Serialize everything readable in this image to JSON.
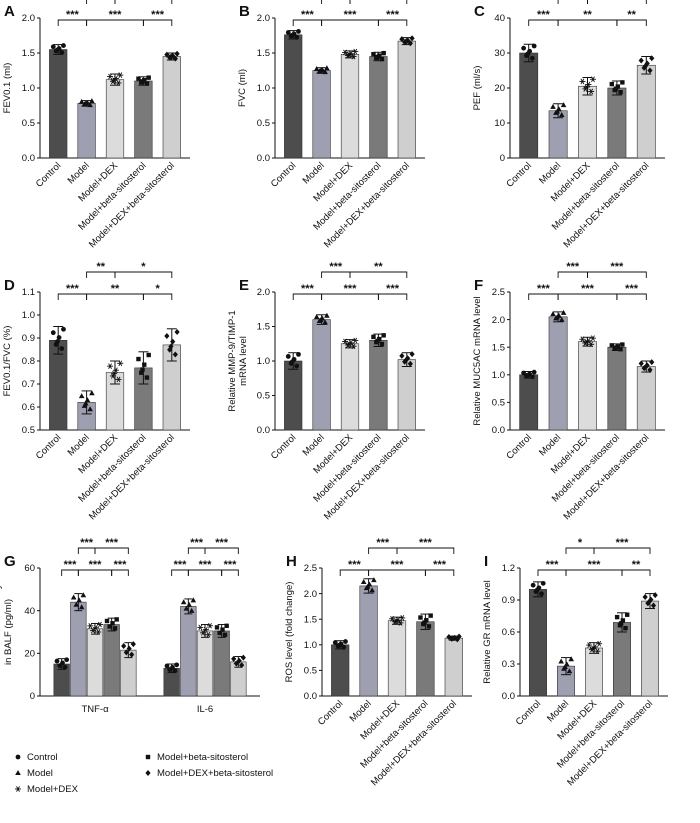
{
  "colors": {
    "Control": "#4d4d4d",
    "Model": "#9e9fb0",
    "Model+DEX": "#dcdcdc",
    "Model+beta-sitosterol": "#7a7a7a",
    "Model+DEX+beta-sitosterol": "#cfcfcf",
    "axis": "#111111"
  },
  "groups": [
    "Control",
    "Model",
    "Model+DEX",
    "Model+beta-sitosterol",
    "Model+DEX+beta-sitosterol"
  ],
  "legend": {
    "items": [
      {
        "label": "Control",
        "marker": "circle"
      },
      {
        "label": "Model+beta-sitosterol",
        "marker": "square"
      },
      {
        "label": "Model",
        "marker": "triangle"
      },
      {
        "label": "Model+DEX+beta-sitosterol",
        "marker": "diamond"
      },
      {
        "label": "Model+DEX",
        "marker": "asterisk"
      }
    ]
  },
  "chart_data": [
    {
      "panel": "A",
      "type": "bar",
      "ylabel": "FEV0.1 (ml)",
      "ylim": [
        0,
        2.0
      ],
      "yticks": [
        "0.0",
        "0.5",
        "1.0",
        "1.5",
        "2.0"
      ],
      "categories": [
        "Control",
        "Model",
        "Model+DEX",
        "Model+beta-sitosterol",
        "Model+DEX+beta-sitosterol"
      ],
      "values": [
        1.55,
        0.78,
        1.12,
        1.1,
        1.45
      ],
      "errors": [
        0.07,
        0.04,
        0.08,
        0.06,
        0.05
      ],
      "significance": [
        {
          "from": 0,
          "to": 1,
          "label": "***",
          "level": 0
        },
        {
          "from": 1,
          "to": 3,
          "label": "***",
          "level": 0
        },
        {
          "from": 3,
          "to": 4,
          "label": "***",
          "level": 0
        },
        {
          "from": 1,
          "to": 2,
          "label": "***",
          "level": 1
        },
        {
          "from": 2,
          "to": 4,
          "label": "***",
          "level": 1
        }
      ]
    },
    {
      "panel": "B",
      "type": "bar",
      "ylabel": "FVC (ml)",
      "ylim": [
        0,
        2.0
      ],
      "yticks": [
        "0.0",
        "0.5",
        "1.0",
        "1.5",
        "2.0"
      ],
      "categories": [
        "Control",
        "Model",
        "Model+DEX",
        "Model+beta-sitosterol",
        "Model+DEX+beta-sitosterol"
      ],
      "values": [
        1.76,
        1.25,
        1.48,
        1.45,
        1.67
      ],
      "errors": [
        0.06,
        0.04,
        0.05,
        0.06,
        0.05
      ],
      "significance": [
        {
          "from": 0,
          "to": 1,
          "label": "***",
          "level": 0
        },
        {
          "from": 1,
          "to": 3,
          "label": "***",
          "level": 0
        },
        {
          "from": 3,
          "to": 4,
          "label": "***",
          "level": 0
        },
        {
          "from": 1,
          "to": 2,
          "label": "***",
          "level": 1
        },
        {
          "from": 2,
          "to": 4,
          "label": "***",
          "level": 1
        }
      ]
    },
    {
      "panel": "C",
      "type": "bar",
      "ylabel": "PEF (ml/s)",
      "ylim": [
        0,
        40
      ],
      "yticks": [
        "0",
        "10",
        "20",
        "30",
        "40"
      ],
      "categories": [
        "Control",
        "Model",
        "Model+DEX",
        "Model+beta-sitosterol",
        "Model+DEX+beta-sitosterol"
      ],
      "values": [
        30,
        13.5,
        20.5,
        20,
        26.5
      ],
      "errors": [
        2.5,
        2.0,
        2.5,
        2.0,
        2.5
      ],
      "significance": [
        {
          "from": 0,
          "to": 1,
          "label": "***",
          "level": 0
        },
        {
          "from": 1,
          "to": 3,
          "label": "**",
          "level": 0
        },
        {
          "from": 3,
          "to": 4,
          "label": "**",
          "level": 0
        },
        {
          "from": 1,
          "to": 2,
          "label": "***",
          "level": 1
        },
        {
          "from": 2,
          "to": 4,
          "label": "**",
          "level": 1
        }
      ]
    },
    {
      "panel": "D",
      "type": "bar",
      "ylabel": "FEV0.1/FVC (%)",
      "ylim": [
        0.5,
        1.1
      ],
      "yticks": [
        "0.5",
        "0.6",
        "0.7",
        "0.8",
        "0.9",
        "1.0",
        "1.1"
      ],
      "categories": [
        "Control",
        "Model",
        "Model+DEX",
        "Model+beta-sitosterol",
        "Model+DEX+beta-sitosterol"
      ],
      "values": [
        0.89,
        0.62,
        0.75,
        0.77,
        0.87
      ],
      "errors": [
        0.06,
        0.05,
        0.05,
        0.07,
        0.07
      ],
      "significance": [
        {
          "from": 0,
          "to": 1,
          "label": "***",
          "level": 0
        },
        {
          "from": 1,
          "to": 3,
          "label": "**",
          "level": 0
        },
        {
          "from": 3,
          "to": 4,
          "label": "*",
          "level": 0
        },
        {
          "from": 1,
          "to": 2,
          "label": "**",
          "level": 1
        },
        {
          "from": 2,
          "to": 4,
          "label": "*",
          "level": 1
        }
      ]
    },
    {
      "panel": "E",
      "type": "bar",
      "ylabel": "Relative MMP-9/TIMP-1 mRNA level",
      "ylim": [
        0,
        2.0
      ],
      "yticks": [
        "0.0",
        "0.5",
        "1.0",
        "1.5",
        "2.0"
      ],
      "categories": [
        "Control",
        "Model",
        "Model+DEX",
        "Model+beta-sitosterol",
        "Model+DEX+beta-sitosterol"
      ],
      "values": [
        1.0,
        1.6,
        1.25,
        1.3,
        1.02
      ],
      "errors": [
        0.12,
        0.07,
        0.06,
        0.09,
        0.1
      ],
      "significance": [
        {
          "from": 0,
          "to": 1,
          "label": "***",
          "level": 0
        },
        {
          "from": 1,
          "to": 3,
          "label": "***",
          "level": 0
        },
        {
          "from": 3,
          "to": 4,
          "label": "***",
          "level": 0
        },
        {
          "from": 1,
          "to": 2,
          "label": "***",
          "level": 1
        },
        {
          "from": 2,
          "to": 4,
          "label": "**",
          "level": 1
        }
      ]
    },
    {
      "panel": "F",
      "type": "bar",
      "ylabel": "Relative MUC5AC mRNA level",
      "ylim": [
        0,
        2.5
      ],
      "yticks": [
        "0.0",
        "0.5",
        "1.0",
        "1.5",
        "2.0",
        "2.5"
      ],
      "categories": [
        "Control",
        "Model",
        "Model+DEX",
        "Model+beta-sitosterol",
        "Model+DEX+beta-sitosterol"
      ],
      "values": [
        1.0,
        2.05,
        1.6,
        1.5,
        1.15
      ],
      "errors": [
        0.06,
        0.09,
        0.08,
        0.06,
        0.1
      ],
      "significance": [
        {
          "from": 0,
          "to": 1,
          "label": "***",
          "level": 0
        },
        {
          "from": 1,
          "to": 3,
          "label": "***",
          "level": 0
        },
        {
          "from": 3,
          "to": 4,
          "label": "***",
          "level": 0
        },
        {
          "from": 1,
          "to": 2,
          "label": "***",
          "level": 1
        },
        {
          "from": 2,
          "to": 4,
          "label": "***",
          "level": 1
        }
      ]
    },
    {
      "panel": "G",
      "type": "bar",
      "ylabel": "Concentration of inflammatory factors in BALF (pg/ml)",
      "ylim": [
        0,
        60
      ],
      "yticks": [
        "0",
        "20",
        "40",
        "60"
      ],
      "clusters": [
        "TNF-α",
        "IL-6"
      ],
      "series": [
        {
          "values": [
            15,
            13
          ],
          "errors": [
            2.5,
            2
          ]
        },
        {
          "values": [
            44,
            42
          ],
          "errors": [
            4,
            3.5
          ]
        },
        {
          "values": [
            31.5,
            30.5
          ],
          "errors": [
            2.5,
            3
          ]
        },
        {
          "values": [
            33.5,
            30.5
          ],
          "errors": [
            3,
            3
          ]
        },
        {
          "values": [
            21.5,
            16
          ],
          "errors": [
            3.5,
            2.5
          ]
        }
      ],
      "significance": [
        {
          "cluster": 0,
          "from": 0,
          "to": 1,
          "label": "***",
          "level": 0
        },
        {
          "cluster": 0,
          "from": 1,
          "to": 3,
          "label": "***",
          "level": 0
        },
        {
          "cluster": 0,
          "from": 3,
          "to": 4,
          "label": "***",
          "level": 0
        },
        {
          "cluster": 0,
          "from": 1,
          "to": 2,
          "label": "***",
          "level": 1
        },
        {
          "cluster": 0,
          "from": 2,
          "to": 4,
          "label": "***",
          "level": 1
        },
        {
          "cluster": 1,
          "from": 0,
          "to": 1,
          "label": "***",
          "level": 0
        },
        {
          "cluster": 1,
          "from": 1,
          "to": 3,
          "label": "***",
          "level": 0
        },
        {
          "cluster": 1,
          "from": 3,
          "to": 4,
          "label": "***",
          "level": 0
        },
        {
          "cluster": 1,
          "from": 1,
          "to": 2,
          "label": "***",
          "level": 1
        },
        {
          "cluster": 1,
          "from": 2,
          "to": 4,
          "label": "***",
          "level": 1
        }
      ]
    },
    {
      "panel": "H",
      "type": "bar",
      "ylabel": "ROS level (fold change)",
      "ylim": [
        0,
        2.5
      ],
      "yticks": [
        "0.0",
        "0.5",
        "1.0",
        "1.5",
        "2.0",
        "2.5"
      ],
      "categories": [
        "Control",
        "Model",
        "Model+DEX",
        "Model+beta-sitosterol",
        "Model+DEX+beta-sitosterol"
      ],
      "values": [
        1.0,
        2.15,
        1.47,
        1.45,
        1.13
      ],
      "errors": [
        0.08,
        0.14,
        0.07,
        0.15,
        0.04
      ],
      "significance": [
        {
          "from": 0,
          "to": 1,
          "label": "***",
          "level": 0
        },
        {
          "from": 1,
          "to": 3,
          "label": "***",
          "level": 0
        },
        {
          "from": 3,
          "to": 4,
          "label": "***",
          "level": 0
        },
        {
          "from": 1,
          "to": 2,
          "label": "***",
          "level": 1
        },
        {
          "from": 2,
          "to": 4,
          "label": "***",
          "level": 1
        }
      ]
    },
    {
      "panel": "I",
      "type": "bar",
      "ylabel": "Relative GR mRNA level",
      "ylim": [
        0,
        1.2
      ],
      "yticks": [
        "0.0",
        "0.3",
        "0.6",
        "0.9",
        "1.2"
      ],
      "categories": [
        "Control",
        "Model",
        "Model+DEX",
        "Model+beta-sitosterol",
        "Model+DEX+beta-sitosterol"
      ],
      "values": [
        1.0,
        0.28,
        0.45,
        0.69,
        0.89
      ],
      "errors": [
        0.07,
        0.08,
        0.05,
        0.09,
        0.07
      ],
      "significance": [
        {
          "from": 0,
          "to": 1,
          "label": "***",
          "level": 0
        },
        {
          "from": 1,
          "to": 3,
          "label": "***",
          "level": 0
        },
        {
          "from": 3,
          "to": 4,
          "label": "**",
          "level": 0
        },
        {
          "from": 1,
          "to": 2,
          "label": "*",
          "level": 1
        },
        {
          "from": 2,
          "to": 4,
          "label": "***",
          "level": 1
        }
      ]
    }
  ]
}
